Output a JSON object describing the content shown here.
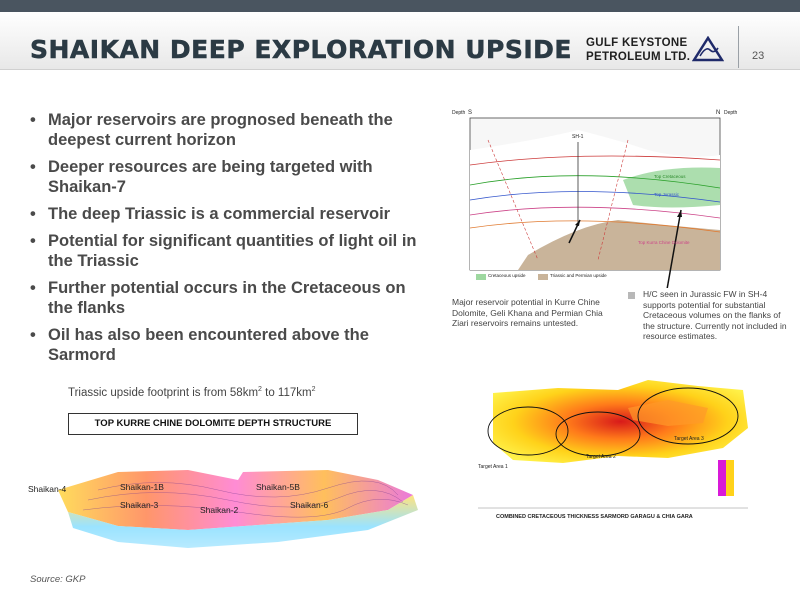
{
  "header": {
    "title": "SHAIKAN DEEP EXPLORATION UPSIDE",
    "logo_line1": "GULF KEYSTONE",
    "logo_line2": "PETROLEUM LTD.",
    "page_number": "23"
  },
  "bullets": [
    "Major reservoirs are prognosed beneath the deepest current horizon",
    "Deeper resources are being targeted with Shaikan-7",
    "The deep Triassic is a commercial  reservoir",
    "Potential for significant quantities of light oil in the Triassic",
    "Further potential occurs in the Cretaceous on the flanks",
    "Oil has also been encountered above the Sarmord"
  ],
  "footprint": {
    "text_before": "Triassic upside footprint is from 58km",
    "sup1": "2",
    "text_middle": " to 117km",
    "sup2": "2"
  },
  "depth_structure_title": "TOP KURRE CHINE DOLOMITE DEPTH STRUCTURE",
  "map3d_labels": {
    "well1": "Shaikan-4",
    "well2": "Shaikan-1B",
    "well3": "Shaikan-3",
    "well4": "Shaikan-2",
    "well5": "Shaikan-5B",
    "well6": "Shaikan-6"
  },
  "cross_section": {
    "depth_left": "Depth",
    "depth_right": "Depth",
    "south": "S",
    "north": "N",
    "well": "SH-1",
    "horizon1": "Top Cretaceous",
    "horizon2": "Top Jurassic",
    "horizon3": "Top Kurra Chine Dolomite",
    "legend1": "Cretaceous upside",
    "legend2": "Triassic and Permian upside"
  },
  "annotation_left": "Major reservoir potential in Kurre Chine Dolomite, Geli Khana and Permian Chia Ziari reservoirs remains untested.",
  "annotation_right": "H/C seen in Jurassic FW in SH-4 supports potential for substantial Cretaceous volumes on the flanks of the structure. Currently not included in resource estimates.",
  "thickness_map": {
    "title": "COMBINED CRETACEOUS THICKNESS SARMORD GARAGU & CHIA GARA",
    "target1": "Target Area 1",
    "target2": "Target Area 2",
    "target3": "Target Area 3"
  },
  "source": "Source: GKP",
  "colors": {
    "title": "#2b3a44",
    "topbar": "#4a5560",
    "cretaceous_upside": "#9ed8a0",
    "triassic_upside": "#c9b49a"
  }
}
